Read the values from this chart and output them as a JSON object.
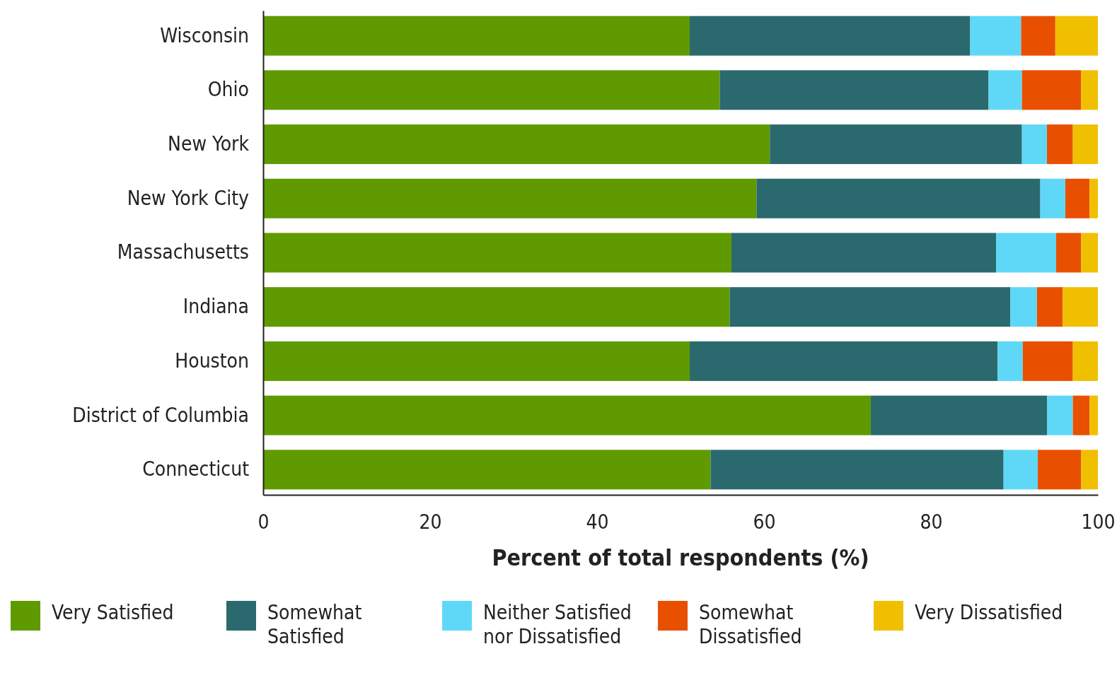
{
  "chart_data": {
    "type": "bar",
    "orientation": "horizontal",
    "stacked": true,
    "xlabel": "Percent of total respondents (%)",
    "xlim": [
      0,
      100
    ],
    "xticks": [
      0,
      20,
      40,
      60,
      80,
      100
    ],
    "grid": false,
    "legend": "bottom",
    "categories": [
      "Wisconsin",
      "Ohio",
      "New York",
      "New York City",
      "Massachusetts",
      "Indiana",
      "Houston",
      "District of Columbia",
      "Connecticut"
    ],
    "series": [
      {
        "name": "Very Satisfied",
        "color": "#5f9a00",
        "values": [
          51.1,
          54.7,
          60.7,
          59.1,
          56.1,
          55.9,
          51.1,
          72.8,
          53.6
        ]
      },
      {
        "name": "Somewhat Satisfied",
        "color": "#2a6a6e",
        "values": [
          33.6,
          32.2,
          30.2,
          34.0,
          31.7,
          33.6,
          36.9,
          21.1,
          35.1
        ]
      },
      {
        "name": "Neither Satisfied nor Dissatisfied",
        "color": "#5fd8f8",
        "values": [
          6.1,
          4.0,
          3.0,
          3.0,
          7.2,
          3.2,
          3.0,
          3.1,
          4.1
        ]
      },
      {
        "name": "Somewhat Dissatisfied",
        "color": "#e85000",
        "values": [
          4.1,
          7.1,
          3.1,
          2.9,
          3.0,
          3.1,
          6.0,
          2.0,
          5.2
        ]
      },
      {
        "name": "Very Dissatisfied",
        "color": "#f0c000",
        "values": [
          5.1,
          2.0,
          3.0,
          1.0,
          2.0,
          4.2,
          3.0,
          1.0,
          2.0
        ]
      }
    ]
  }
}
